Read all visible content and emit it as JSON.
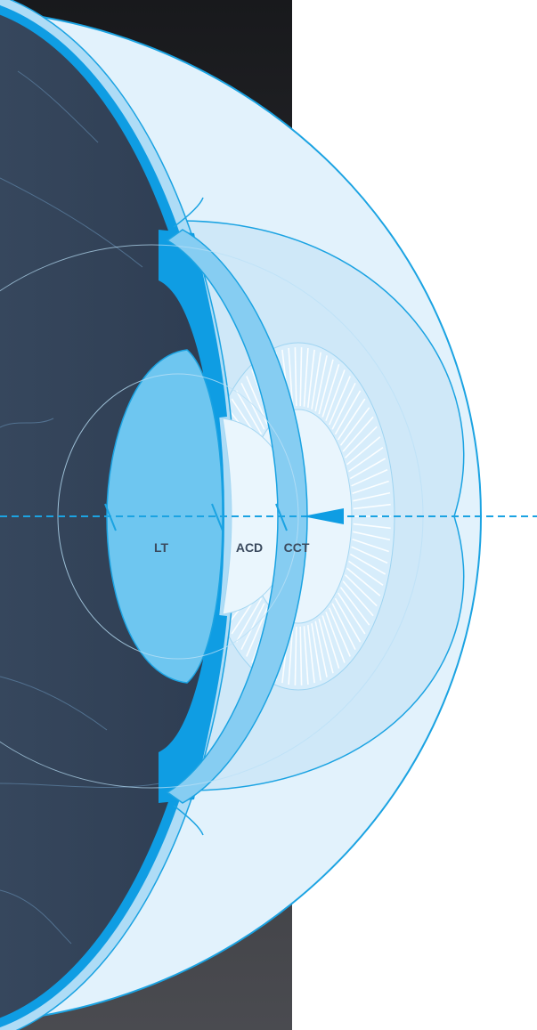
{
  "labels": {
    "lens_thickness": "LT",
    "anterior_chamber_depth": "ACD",
    "central_corneal_thickness": "CCT"
  },
  "colors": {
    "background_panel": "#1b1c1f",
    "vitreous_dark": "#33455c",
    "sclera_fill": "#e2f2fc",
    "stroke_blue": "#1ba3e2",
    "bright_blue": "#0f9de3",
    "lens_fill": "#6ec6f0",
    "cornea_band": "#86cdf2",
    "iris_pale": "#d2ebfa",
    "label_text": "#3b4a5e",
    "measurement_line": "#1ba3e2"
  }
}
